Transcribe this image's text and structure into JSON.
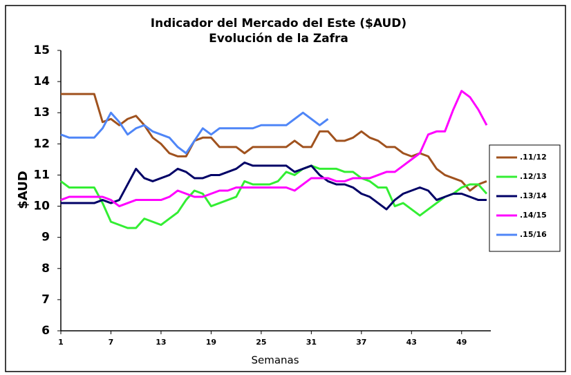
{
  "chart_data": {
    "type": "line",
    "title": "Indicador del Mercado del Este ($AUD)",
    "subtitle": "Evolución de la Zafra",
    "x_label": "Semanas",
    "y_label": "$AUD",
    "x": [
      1,
      2,
      3,
      4,
      5,
      6,
      7,
      8,
      9,
      10,
      11,
      12,
      13,
      14,
      15,
      16,
      17,
      18,
      19,
      20,
      21,
      22,
      23,
      24,
      25,
      26,
      27,
      28,
      29,
      30,
      31,
      32,
      33,
      34,
      35,
      36,
      37,
      38,
      39,
      40,
      41,
      42,
      43,
      44,
      45,
      46,
      47,
      48,
      49,
      50,
      51,
      52
    ],
    "xlim": [
      1,
      52
    ],
    "xticks": [
      1,
      7,
      13,
      19,
      25,
      31,
      37,
      43,
      49
    ],
    "ylim": [
      6,
      15
    ],
    "yticks": [
      6,
      7,
      8,
      9,
      10,
      11,
      12,
      13,
      14,
      15
    ],
    "grid": false,
    "legend": "right",
    "series": [
      {
        "name": ".11/12",
        "color": "#a0521e",
        "values": [
          13.6,
          13.6,
          13.6,
          13.6,
          13.6,
          12.7,
          12.8,
          12.6,
          12.8,
          12.9,
          12.6,
          12.2,
          12.0,
          11.7,
          11.6,
          11.6,
          12.1,
          12.2,
          12.2,
          11.9,
          11.9,
          11.9,
          11.7,
          11.9,
          11.9,
          11.9,
          11.9,
          11.9,
          12.1,
          11.9,
          11.9,
          12.4,
          12.4,
          12.1,
          12.1,
          12.2,
          12.4,
          12.2,
          12.1,
          11.9,
          11.9,
          11.7,
          11.6,
          11.7,
          11.6,
          11.2,
          11.0,
          10.9,
          10.8,
          10.5,
          10.7,
          10.8
        ]
      },
      {
        "name": ".12/13",
        "color": "#33ee33",
        "values": [
          10.8,
          10.6,
          10.6,
          10.6,
          10.6,
          10.1,
          9.5,
          9.4,
          9.3,
          9.3,
          9.6,
          9.5,
          9.4,
          9.6,
          9.8,
          10.2,
          10.5,
          10.4,
          10.0,
          10.1,
          10.2,
          10.3,
          10.8,
          10.7,
          10.7,
          10.7,
          10.8,
          11.1,
          11.0,
          11.2,
          11.3,
          11.2,
          11.2,
          11.2,
          11.1,
          11.1,
          10.9,
          10.8,
          10.6,
          10.6,
          10.0,
          10.1,
          9.9,
          9.7,
          9.9,
          10.1,
          10.3,
          10.4,
          10.6,
          10.7,
          10.7,
          10.4
        ]
      },
      {
        "name": ".13/14",
        "color": "#000066",
        "values": [
          10.1,
          10.1,
          10.1,
          10.1,
          10.1,
          10.2,
          10.1,
          10.2,
          10.7,
          11.2,
          10.9,
          10.8,
          10.9,
          11.0,
          11.2,
          11.1,
          10.9,
          10.9,
          11.0,
          11.0,
          11.1,
          11.2,
          11.4,
          11.3,
          11.3,
          11.3,
          11.3,
          11.3,
          11.1,
          11.2,
          11.3,
          11.0,
          10.8,
          10.7,
          10.7,
          10.6,
          10.4,
          10.3,
          10.1,
          9.9,
          10.2,
          10.4,
          10.5,
          10.6,
          10.5,
          10.2,
          10.3,
          10.4,
          10.4,
          10.3,
          10.2,
          10.2
        ]
      },
      {
        "name": ".14/15",
        "color": "#ff00ff",
        "values": [
          10.2,
          10.3,
          10.3,
          10.3,
          10.3,
          10.3,
          10.2,
          10.0,
          10.1,
          10.2,
          10.2,
          10.2,
          10.2,
          10.3,
          10.5,
          10.4,
          10.3,
          10.3,
          10.4,
          10.5,
          10.5,
          10.6,
          10.6,
          10.6,
          10.6,
          10.6,
          10.6,
          10.6,
          10.5,
          10.7,
          10.9,
          10.9,
          10.9,
          10.8,
          10.8,
          10.9,
          10.9,
          10.9,
          11.0,
          11.1,
          11.1,
          11.3,
          11.5,
          11.7,
          12.3,
          12.4,
          12.4,
          13.1,
          13.7,
          13.5,
          13.1,
          12.6
        ]
      },
      {
        "name": ".15/16",
        "color": "#4f86f7",
        "values": [
          12.3,
          12.2,
          12.2,
          12.2,
          12.2,
          12.5,
          13.0,
          12.7,
          12.3,
          12.5,
          12.6,
          12.4,
          12.3,
          12.2,
          11.9,
          11.7,
          12.1,
          12.5,
          12.3,
          12.5,
          12.5,
          12.5,
          12.5,
          12.5,
          12.6,
          12.6,
          12.6,
          12.6,
          12.8,
          13.0,
          12.8,
          12.6,
          12.8,
          null,
          null,
          null,
          null,
          null,
          null,
          null,
          null,
          null,
          null,
          null,
          null,
          null,
          null,
          null,
          null,
          null,
          null,
          null
        ]
      }
    ]
  }
}
